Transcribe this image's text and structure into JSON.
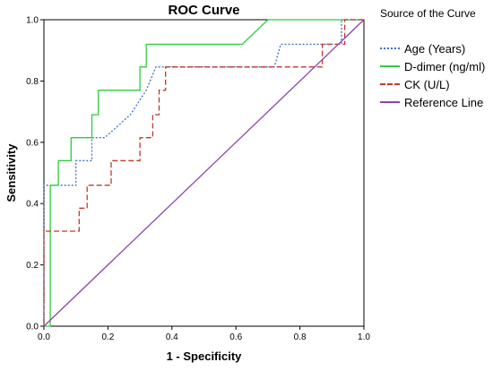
{
  "chart_data": {
    "type": "line",
    "title": "ROC Curve",
    "xlabel": "1 - Specificity",
    "ylabel": "Sensitivity",
    "xlim": [
      0,
      1
    ],
    "ylim": [
      0,
      1
    ],
    "x_ticks": [
      "0.0",
      "0.2",
      "0.4",
      "0.6",
      "0.8",
      "1.0"
    ],
    "y_ticks": [
      "0.0",
      "0.2",
      "0.4",
      "0.6",
      "0.8",
      "1.0"
    ],
    "legend_title": "Source of the Curve",
    "legend_position": "right",
    "series": [
      {
        "name": "Age (Years)",
        "color": "#3f6fc4",
        "style": "dotted",
        "x": [
          0,
          0,
          0.1,
          0.1,
          0.15,
          0.15,
          0.19,
          0.27,
          0.32,
          0.35,
          0.72,
          0.74,
          0.87,
          0.93,
          0.93,
          1
        ],
        "y": [
          0,
          0.46,
          0.46,
          0.54,
          0.54,
          0.615,
          0.615,
          0.69,
          0.77,
          0.846,
          0.846,
          0.92,
          0.92,
          0.92,
          1,
          1
        ]
      },
      {
        "name": "D-dimer (ng/ml)",
        "color": "#2ecc40",
        "style": "solid",
        "x": [
          0,
          0.02,
          0.02,
          0.045,
          0.045,
          0.085,
          0.085,
          0.15,
          0.15,
          0.17,
          0.17,
          0.3,
          0.3,
          0.32,
          0.32,
          0.62,
          0.7,
          1
        ],
        "y": [
          0,
          0,
          0.46,
          0.46,
          0.54,
          0.54,
          0.615,
          0.615,
          0.69,
          0.69,
          0.77,
          0.77,
          0.846,
          0.846,
          0.92,
          0.92,
          1,
          1
        ]
      },
      {
        "name": "CK (U/L)",
        "color": "#c0392b",
        "style": "dashed",
        "x": [
          0,
          0,
          0.11,
          0.11,
          0.135,
          0.135,
          0.21,
          0.21,
          0.3,
          0.3,
          0.34,
          0.34,
          0.36,
          0.36,
          0.38,
          0.38,
          0.87,
          0.87,
          0.94,
          0.94,
          1
        ],
        "y": [
          0,
          0.31,
          0.31,
          0.385,
          0.385,
          0.46,
          0.46,
          0.54,
          0.54,
          0.615,
          0.615,
          0.69,
          0.69,
          0.77,
          0.77,
          0.846,
          0.846,
          0.92,
          0.92,
          1,
          1
        ]
      },
      {
        "name": "Reference Line",
        "color": "#8e44ad",
        "style": "solid",
        "x": [
          0,
          1
        ],
        "y": [
          0,
          1
        ]
      }
    ]
  }
}
